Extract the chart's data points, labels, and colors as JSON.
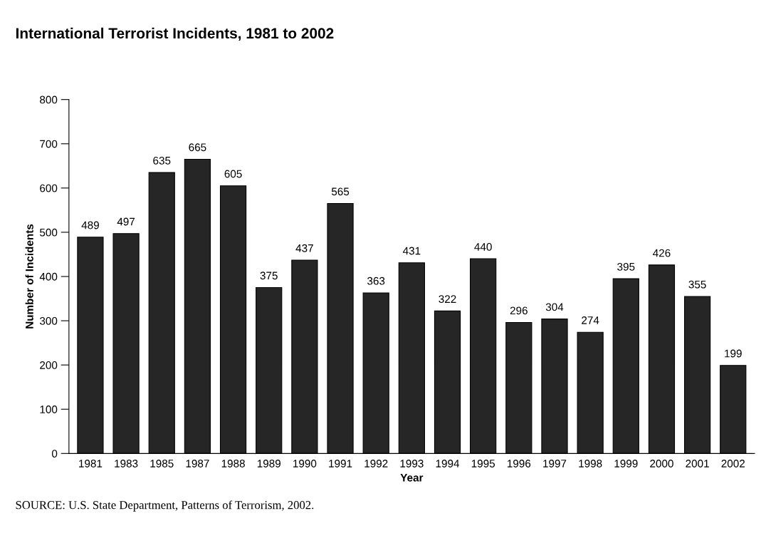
{
  "chart_data": {
    "type": "bar",
    "title": "International Terrorist Incidents, 1981 to 2002",
    "xlabel": "Year",
    "ylabel": "Number of Incidents",
    "categories": [
      "1981",
      "1983",
      "1985",
      "1987",
      "1988",
      "1989",
      "1990",
      "1991",
      "1992",
      "1993",
      "1994",
      "1995",
      "1996",
      "1997",
      "1998",
      "1999",
      "2000",
      "2001",
      "2002"
    ],
    "values": [
      489,
      497,
      635,
      665,
      605,
      375,
      437,
      565,
      363,
      431,
      322,
      440,
      296,
      304,
      274,
      395,
      426,
      355,
      199
    ],
    "color": "#262626",
    "ylim": [
      0,
      800
    ],
    "yticks": [
      0,
      100,
      200,
      300,
      400,
      500,
      600,
      700,
      800
    ],
    "grid": false,
    "legend": false,
    "data_labels": true,
    "annotations": [
      "SOURCE: U.S. State Department, Patterns of Terrorism, 2002."
    ]
  }
}
